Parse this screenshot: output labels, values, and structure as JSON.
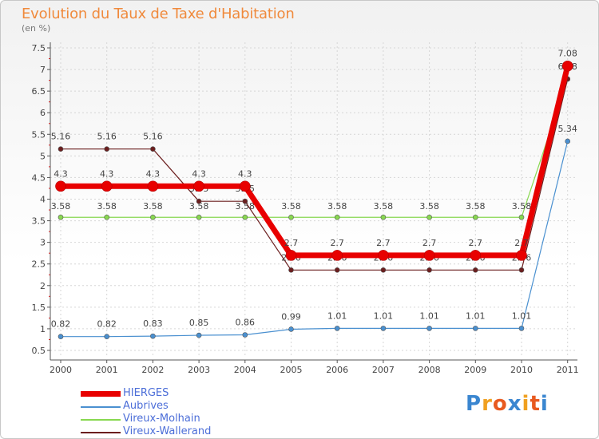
{
  "chart_data": {
    "type": "line",
    "title": "Evolution du Taux de Taxe d'Habitation",
    "ylabel": "(en %)",
    "xlabel": "",
    "ylim": [
      0.5,
      7.5
    ],
    "yticks": [
      "0.5",
      "1",
      "1.5",
      "2",
      "2.5",
      "3",
      "3.5",
      "4",
      "4.5",
      "5",
      "5.5",
      "6",
      "6.5",
      "7",
      "7.5"
    ],
    "categories": [
      "2000",
      "2001",
      "2002",
      "2003",
      "2004",
      "2005",
      "2006",
      "2007",
      "2008",
      "2009",
      "2010",
      "2011"
    ],
    "series": [
      {
        "name": "Aubrives",
        "color": "#4a90d0",
        "values": [
          0.82,
          0.82,
          0.83,
          0.85,
          0.86,
          0.99,
          1.01,
          1.01,
          1.01,
          1.01,
          1.01,
          5.34
        ],
        "labels": [
          "0.82",
          "0.82",
          "0.83",
          "0.85",
          "0.86",
          "0.99",
          "1.01",
          "1.01",
          "1.01",
          "1.01",
          "1.01",
          "5.34"
        ]
      },
      {
        "name": "Vireux-Molhain",
        "color": "#88d850",
        "values": [
          3.58,
          3.58,
          3.58,
          3.58,
          3.58,
          3.58,
          3.58,
          3.58,
          3.58,
          3.58,
          3.58,
          6.78
        ],
        "labels": [
          "3.58",
          "3.58",
          "3.58",
          "3.58",
          "3.58",
          "3.58",
          "3.58",
          "3.58",
          "3.58",
          "3.58",
          "3.58",
          ""
        ]
      },
      {
        "name": "Vireux-Wallerand",
        "color": "#6b1e1e",
        "values": [
          5.16,
          5.16,
          5.16,
          3.95,
          3.95,
          2.36,
          2.36,
          2.36,
          2.36,
          2.36,
          2.36,
          6.78
        ],
        "labels": [
          "5.16",
          "5.16",
          "5.16",
          "3.95",
          "3.95",
          "2.36",
          "2.36",
          "2.36",
          "2.36",
          "2.36",
          "2.36",
          "6.78"
        ]
      },
      {
        "name": "HIERGES",
        "color": "#e80000",
        "values": [
          4.3,
          4.3,
          4.3,
          4.3,
          4.3,
          2.7,
          2.7,
          2.7,
          2.7,
          2.7,
          2.7,
          7.08
        ],
        "labels": [
          "4.3",
          "4.3",
          "4.3",
          "4.3",
          "4.3",
          "2.7",
          "2.7",
          "2.7",
          "2.7",
          "2.7",
          "2.7",
          "7.08"
        ]
      }
    ],
    "legend": [
      "HIERGES",
      "Aubrives",
      "Vireux-Molhain",
      "Vireux-Wallerand"
    ],
    "legend_position": "bottom-left"
  },
  "brand": {
    "logo_text": "Proxiti",
    "letters": [
      "P",
      "r",
      "o",
      "x",
      "i",
      "t",
      "i"
    ],
    "colors": [
      "#3a86d0",
      "#f0a020",
      "#e85a20",
      "#3a86d0",
      "#f0a020",
      "#e85a20",
      "#3a86d0"
    ]
  }
}
